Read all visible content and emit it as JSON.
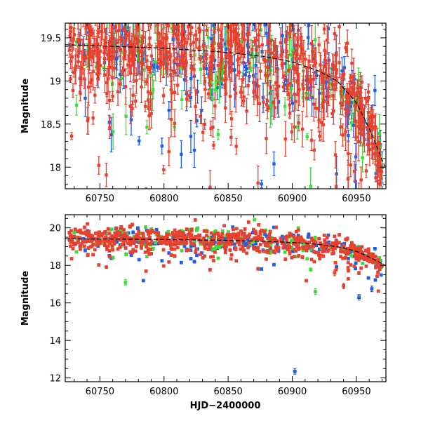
{
  "chart_data": [
    {
      "type": "scatter",
      "panel": "top",
      "title": "",
      "xlabel": "",
      "ylabel": "Magnitude",
      "xlim": [
        60723,
        60973
      ],
      "ylim": [
        19.67,
        17.75
      ],
      "y_inverted": true,
      "x_ticks": [
        60750,
        60800,
        60850,
        60900,
        60950
      ],
      "x_tick_labels": [
        "60750",
        "60800",
        "60850",
        "60900",
        "60950"
      ],
      "y_ticks": [
        18,
        18.5,
        19,
        19.5
      ],
      "y_tick_labels": [
        "18",
        "18.5",
        "19",
        "19.5"
      ],
      "error_bars": true,
      "series": [
        {
          "name": "red",
          "color": "#e8412f",
          "approx_points": 700
        },
        {
          "name": "blue",
          "color": "#1f5fe6",
          "approx_points": 220
        },
        {
          "name": "green",
          "color": "#3fdc3a",
          "approx_points": 140
        }
      ],
      "trend": {
        "x": [
          60723,
          60800,
          60850,
          60880,
          60900,
          60920,
          60935,
          60950,
          60960,
          60973
        ],
        "y": [
          19.42,
          19.38,
          19.33,
          19.28,
          19.22,
          19.12,
          19.0,
          18.75,
          18.45,
          17.98
        ]
      }
    },
    {
      "type": "scatter",
      "panel": "bottom",
      "title": "",
      "xlabel": "HJD−2400000",
      "ylabel": "Magnitude",
      "xlim": [
        60723,
        60973
      ],
      "ylim": [
        20.7,
        11.8
      ],
      "y_inverted": true,
      "x_ticks": [
        60750,
        60800,
        60850,
        60900,
        60950
      ],
      "x_tick_labels": [
        "60750",
        "60800",
        "60850",
        "60900",
        "60950"
      ],
      "y_ticks": [
        12,
        14,
        16,
        18,
        20
      ],
      "y_tick_labels": [
        "12",
        "14",
        "16",
        "18",
        "20"
      ],
      "error_bars": true,
      "series": [
        {
          "name": "red",
          "color": "#e8412f",
          "approx_points": 700
        },
        {
          "name": "blue",
          "color": "#1f5fe6",
          "approx_points": 220
        },
        {
          "name": "green",
          "color": "#3fdc3a",
          "approx_points": 140
        }
      ],
      "outliers": [
        {
          "series": "blue",
          "x": 60902,
          "y": 12.35
        },
        {
          "series": "blue",
          "x": 60952,
          "y": 16.3
        },
        {
          "series": "blue",
          "x": 60962,
          "y": 16.75
        },
        {
          "series": "green",
          "x": 60918,
          "y": 16.6
        },
        {
          "series": "green",
          "x": 60770,
          "y": 17.1
        },
        {
          "series": "red",
          "x": 60940,
          "y": 16.9
        },
        {
          "series": "red",
          "x": 60933,
          "y": 17.6
        }
      ],
      "trend": {
        "x": [
          60723,
          60800,
          60850,
          60880,
          60900,
          60920,
          60935,
          60950,
          60960,
          60973
        ],
        "y": [
          19.42,
          19.38,
          19.33,
          19.28,
          19.22,
          19.12,
          19.0,
          18.75,
          18.45,
          17.98
        ]
      }
    }
  ]
}
